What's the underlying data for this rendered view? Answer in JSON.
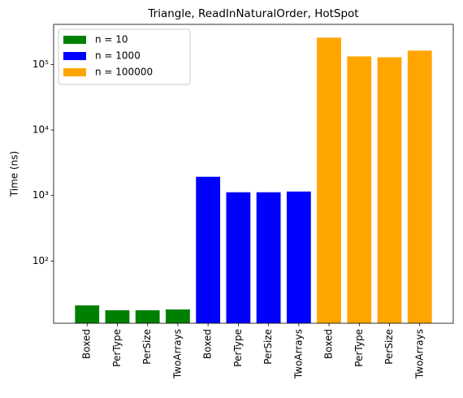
{
  "chart_data": {
    "type": "bar",
    "title": "Triangle, ReadInNaturalOrder, HotSpot",
    "y_label": "Time (ns)",
    "categories": [
      "Boxed",
      "PerType",
      "PerSize",
      "TwoArrays",
      "Boxed",
      "PerType",
      "PerSize",
      "TwoArrays",
      "Boxed",
      "PerType",
      "PerSize",
      "TwoArrays"
    ],
    "series": [
      {
        "name": "n = 10",
        "color": "#008000",
        "values": [
          21,
          17.7,
          17.7,
          18.2,
          null,
          null,
          null,
          null,
          null,
          null,
          null,
          null
        ]
      },
      {
        "name": "n = 1000",
        "color": "#0000ff",
        "values": [
          null,
          null,
          null,
          null,
          1930,
          1120,
          1120,
          1150,
          null,
          null,
          null,
          null
        ]
      },
      {
        "name": "n = 100000",
        "color": "#ffa500",
        "values": [
          null,
          null,
          null,
          null,
          null,
          null,
          null,
          null,
          257000,
          133000,
          129000,
          163000
        ]
      }
    ],
    "log_y": true,
    "ylim": [
      11.2,
      410000
    ],
    "yticks": [
      {
        "value": 100,
        "label": "10²"
      },
      {
        "value": 1000,
        "label": "10³"
      },
      {
        "value": 10000,
        "label": "10⁴"
      },
      {
        "value": 100000,
        "label": "10⁵"
      }
    ],
    "legend": "upper left"
  }
}
